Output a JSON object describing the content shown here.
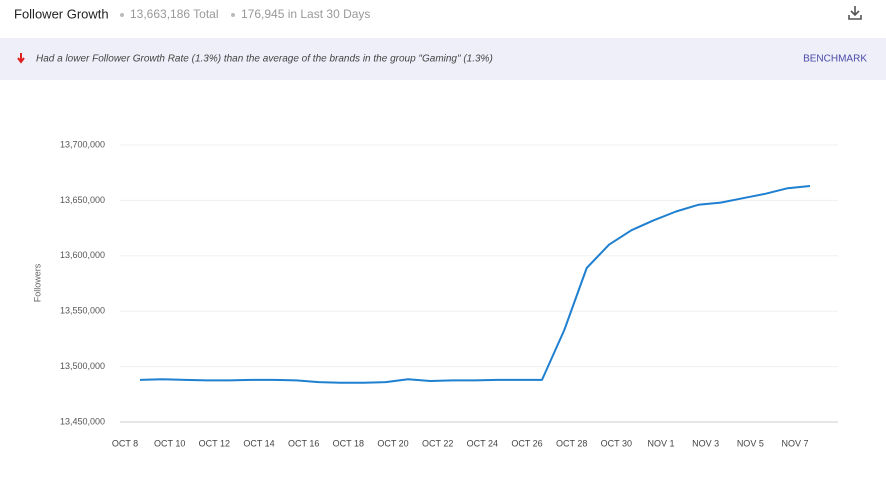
{
  "header": {
    "title": "Follower Growth",
    "total": "13,663,186 Total",
    "recent": "176,945 in Last 30 Days"
  },
  "banner": {
    "text": "Had a lower Follower Growth Rate (1.3%) than the average of the brands in the group \"Gaming\" (1.3%)",
    "link": "BENCHMARK"
  },
  "chart_data": {
    "type": "line",
    "ylabel": "Followers",
    "categories": [
      "OCT 8",
      null,
      "OCT 10",
      null,
      "OCT 12",
      null,
      "OCT 14",
      null,
      "OCT 16",
      null,
      "OCT 18",
      null,
      "OCT 20",
      null,
      "OCT 22",
      null,
      "OCT 24",
      null,
      "OCT 26",
      null,
      "OCT 28",
      null,
      "OCT 30",
      null,
      "NOV 1",
      null,
      "NOV 3",
      null,
      "NOV 5",
      null,
      "NOV 7"
    ],
    "series": [
      {
        "name": "Followers",
        "color": "#1f7fd0",
        "values": [
          13488000,
          13488500,
          13488000,
          13487500,
          13487500,
          13488000,
          13488000,
          13487500,
          13486000,
          13485500,
          13485500,
          13486000,
          13488500,
          13487000,
          13487500,
          13487500,
          13488000,
          13488000,
          13488000,
          13533000,
          13589000,
          13610000,
          13623000,
          13632000,
          13640000,
          13646000,
          13648000,
          13652000,
          13656000,
          13661000,
          13663000
        ]
      }
    ],
    "ylim": [
      13450000,
      13700000
    ],
    "yticks": [
      {
        "value": 13450000,
        "label": "13,450,000"
      },
      {
        "value": 13500000,
        "label": "13,500,000"
      },
      {
        "value": 13550000,
        "label": "13,550,000"
      },
      {
        "value": 13600000,
        "label": "13,600,000"
      },
      {
        "value": 13650000,
        "label": "13,650,000"
      },
      {
        "value": 13700000,
        "label": "13,700,000"
      }
    ],
    "grid": true
  }
}
